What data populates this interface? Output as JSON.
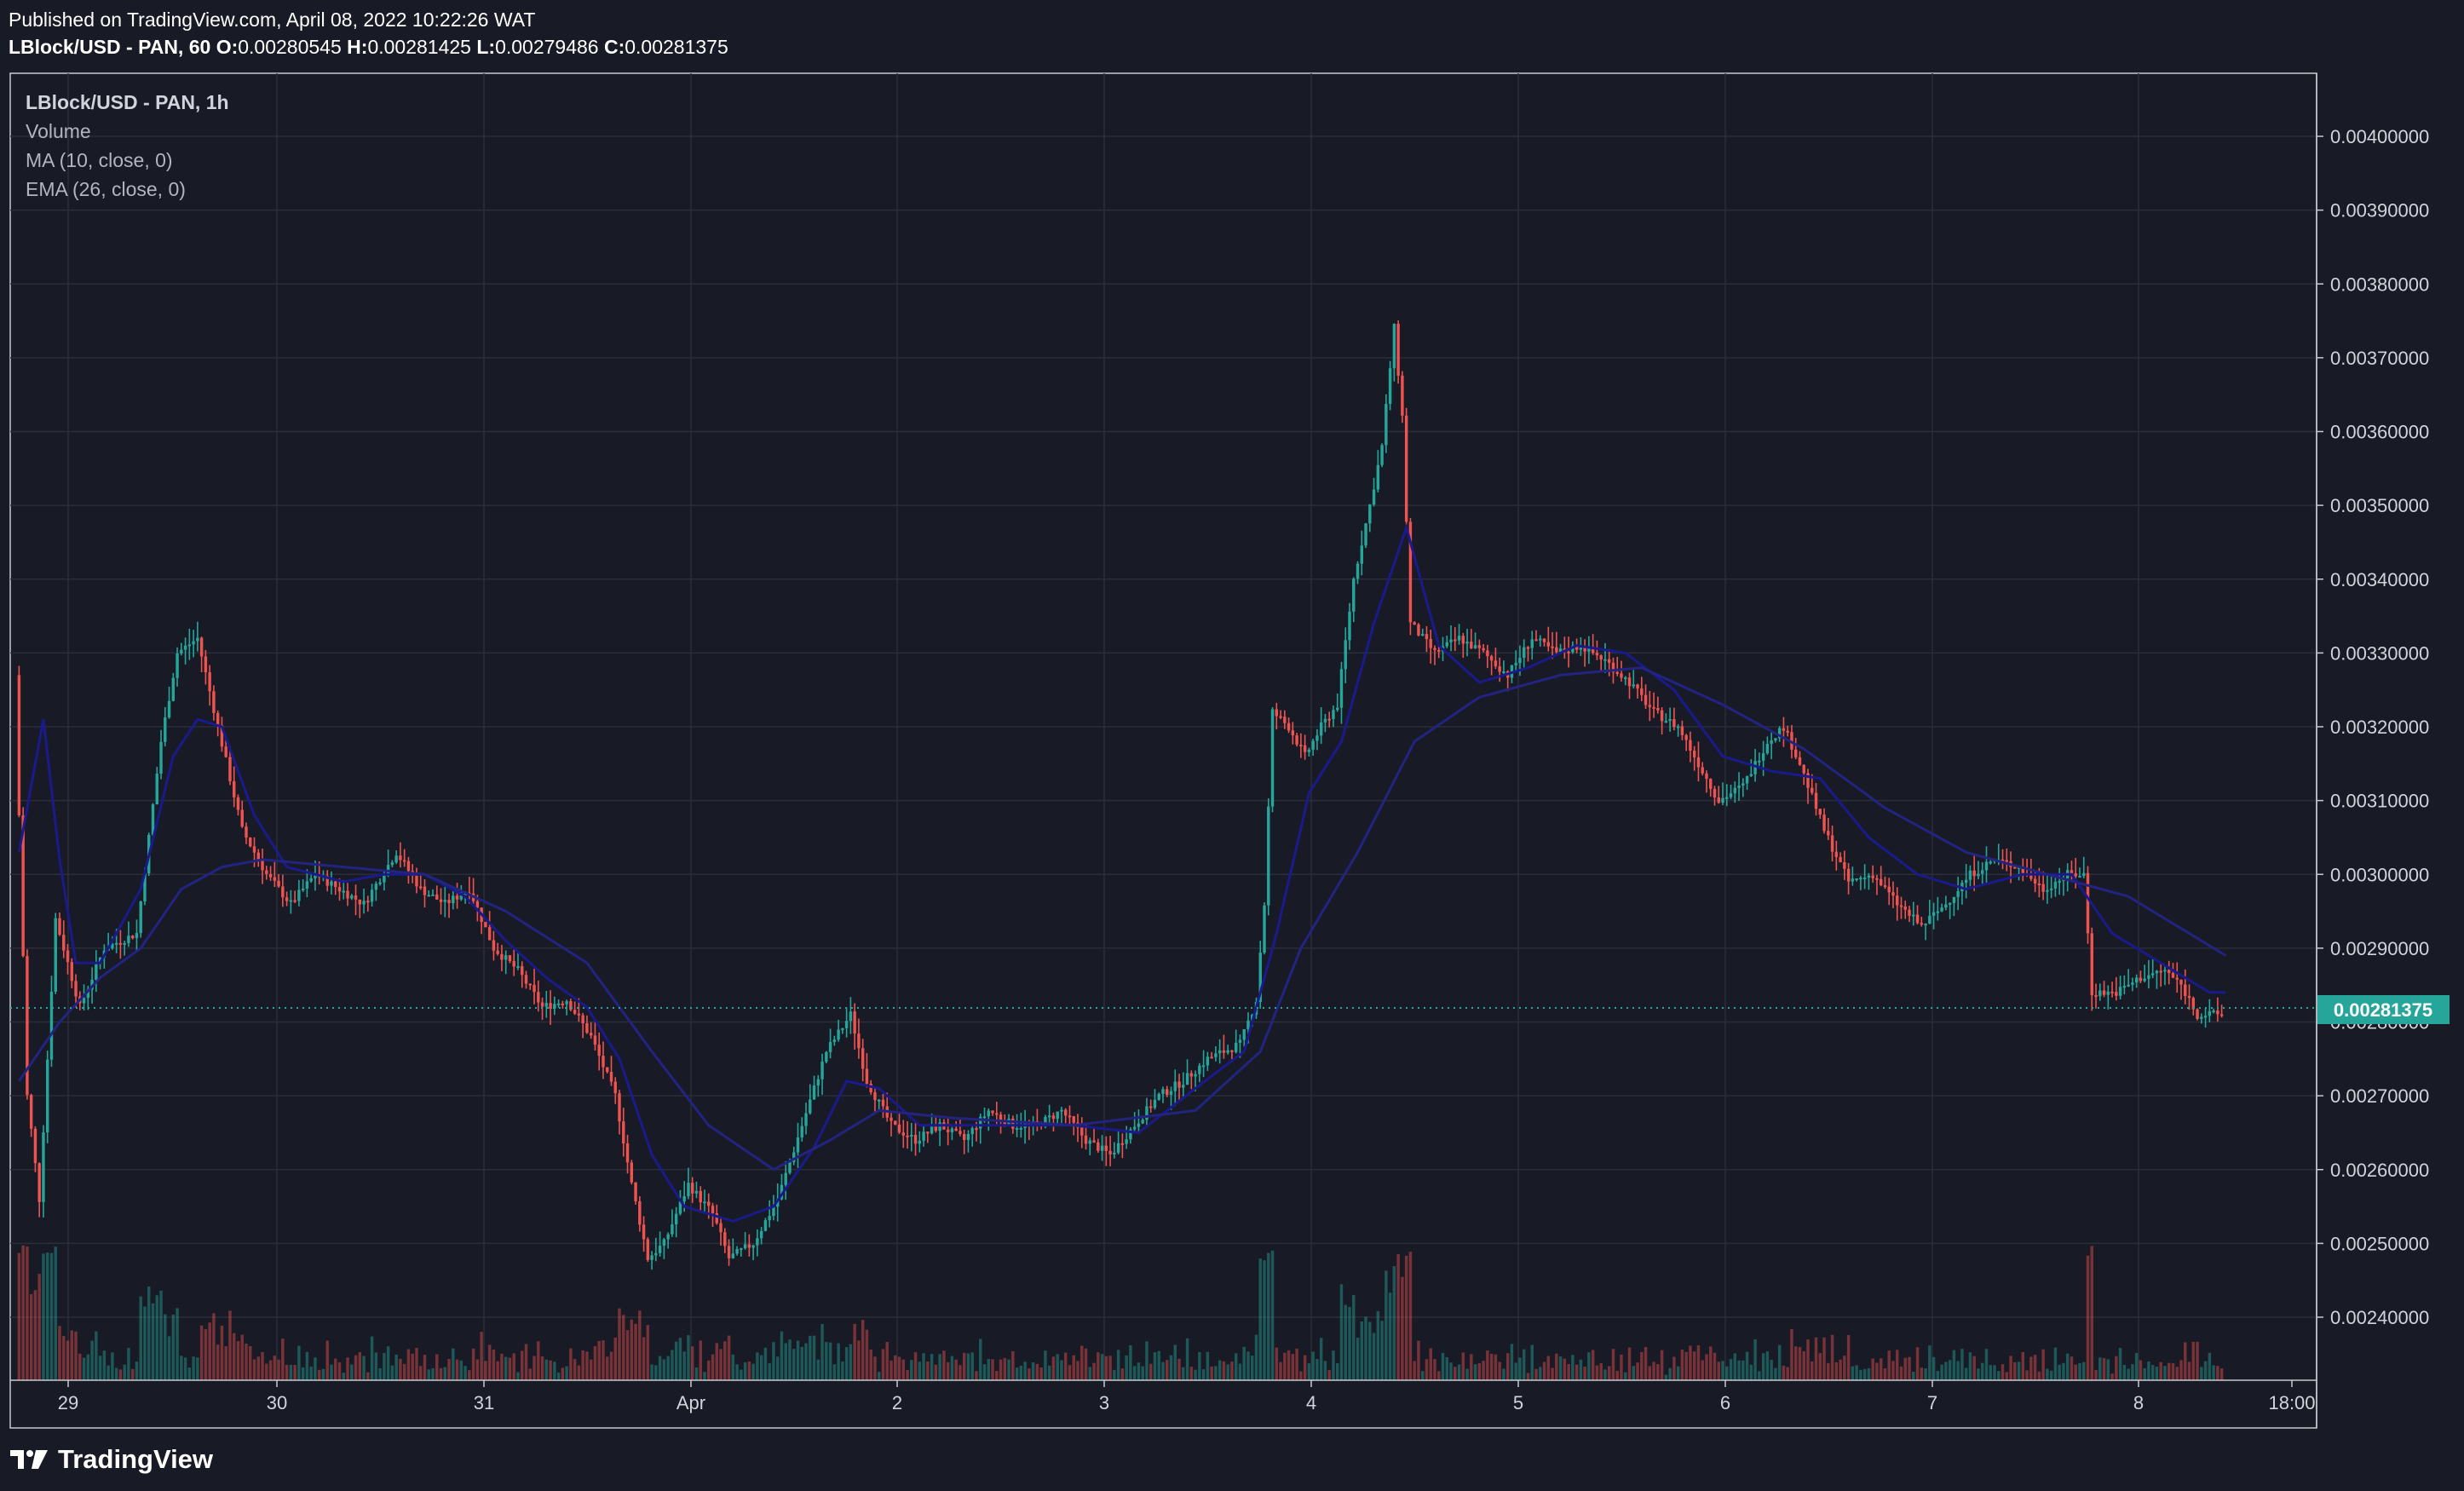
{
  "header": {
    "published": "Published on TradingView.com, April 08, 2022 10:22:26 WAT",
    "symbol_line": "LBlock/USD - PAN, 60",
    "open_label": "O:",
    "open": "0.00280545",
    "high_label": "H:",
    "high": "0.00281425",
    "low_label": "L:",
    "low": "0.00279486",
    "close_label": "C:",
    "close": "0.00281375"
  },
  "legend": {
    "symbol": "LBlock/USD - PAN, 1h",
    "volume": "Volume",
    "ma": "MA (10, close, 0)",
    "ema": "EMA (26, close, 0)"
  },
  "footer": {
    "brand": "TradingView"
  },
  "colors": {
    "up": "#26a69a",
    "down": "#ef5350",
    "ma": "#1a1a8c",
    "ema": "#1e1e7a",
    "last_price_bg": "#26a69a"
  },
  "chart_data": {
    "type": "candlestick",
    "y_axis_ticks": [
      "0.00400000",
      "0.00390000",
      "0.00380000",
      "0.00370000",
      "0.00360000",
      "0.00350000",
      "0.00340000",
      "0.00330000",
      "0.00320000",
      "0.00310000",
      "0.00300000",
      "0.00290000",
      "0.00280000",
      "0.00270000",
      "0.00260000",
      "0.00250000",
      "0.00240000"
    ],
    "x_axis_ticks": [
      "29",
      "30",
      "31",
      "Apr",
      "2",
      "3",
      "4",
      "5",
      "6",
      "7",
      "8",
      "18:00"
    ],
    "last_price": "0.00281375",
    "ylim": [
      0.00233,
      0.00408
    ],
    "series_path_prices": [
      [
        0,
        0.00327
      ],
      [
        3,
        0.0027
      ],
      [
        6,
        0.00256
      ],
      [
        10,
        0.00294
      ],
      [
        16,
        0.00282
      ],
      [
        22,
        0.0029
      ],
      [
        30,
        0.00292
      ],
      [
        36,
        0.00318
      ],
      [
        40,
        0.0033
      ],
      [
        45,
        0.00332
      ],
      [
        50,
        0.0032
      ],
      [
        56,
        0.00306
      ],
      [
        62,
        0.003
      ],
      [
        68,
        0.00296
      ],
      [
        74,
        0.003
      ],
      [
        80,
        0.00298
      ],
      [
        86,
        0.00296
      ],
      [
        94,
        0.00303
      ],
      [
        100,
        0.00298
      ],
      [
        106,
        0.00296
      ],
      [
        112,
        0.00298
      ],
      [
        118,
        0.0029
      ],
      [
        124,
        0.00287
      ],
      [
        130,
        0.00282
      ],
      [
        136,
        0.00283
      ],
      [
        142,
        0.00278
      ],
      [
        148,
        0.0027
      ],
      [
        152,
        0.00258
      ],
      [
        156,
        0.00248
      ],
      [
        160,
        0.0025
      ],
      [
        166,
        0.00258
      ],
      [
        172,
        0.00254
      ],
      [
        176,
        0.00248
      ],
      [
        182,
        0.0025
      ],
      [
        188,
        0.00256
      ],
      [
        194,
        0.00266
      ],
      [
        200,
        0.00276
      ],
      [
        206,
        0.00281
      ],
      [
        210,
        0.00272
      ],
      [
        216,
        0.00266
      ],
      [
        222,
        0.00264
      ],
      [
        228,
        0.00266
      ],
      [
        234,
        0.00264
      ],
      [
        240,
        0.00268
      ],
      [
        246,
        0.00266
      ],
      [
        252,
        0.00266
      ],
      [
        258,
        0.00268
      ],
      [
        264,
        0.00264
      ],
      [
        270,
        0.00262
      ],
      [
        276,
        0.00266
      ],
      [
        282,
        0.0027
      ],
      [
        288,
        0.00272
      ],
      [
        294,
        0.00275
      ],
      [
        298,
        0.00276
      ],
      [
        302,
        0.00277
      ],
      [
        306,
        0.00283
      ],
      [
        308,
        0.00296
      ],
      [
        310,
        0.00322
      ],
      [
        314,
        0.0032
      ],
      [
        318,
        0.00316
      ],
      [
        322,
        0.0032
      ],
      [
        326,
        0.00323
      ],
      [
        330,
        0.0034
      ],
      [
        334,
        0.0035
      ],
      [
        337,
        0.00358
      ],
      [
        340,
        0.00374
      ],
      [
        342,
        0.00362
      ],
      [
        344,
        0.00334
      ],
      [
        350,
        0.0033
      ],
      [
        356,
        0.00332
      ],
      [
        362,
        0.0033
      ],
      [
        368,
        0.00327
      ],
      [
        374,
        0.00332
      ],
      [
        380,
        0.0033
      ],
      [
        386,
        0.00331
      ],
      [
        392,
        0.00329
      ],
      [
        398,
        0.00326
      ],
      [
        404,
        0.00322
      ],
      [
        410,
        0.0032
      ],
      [
        416,
        0.00314
      ],
      [
        420,
        0.0031
      ],
      [
        426,
        0.00312
      ],
      [
        432,
        0.00318
      ],
      [
        436,
        0.0032
      ],
      [
        440,
        0.00315
      ],
      [
        446,
        0.00306
      ],
      [
        452,
        0.00299
      ],
      [
        458,
        0.003
      ],
      [
        464,
        0.00296
      ],
      [
        470,
        0.00293
      ],
      [
        476,
        0.00296
      ],
      [
        482,
        0.003
      ],
      [
        488,
        0.00302
      ],
      [
        494,
        0.00301
      ],
      [
        500,
        0.00298
      ],
      [
        506,
        0.003
      ],
      [
        510,
        0.003
      ],
      [
        512,
        0.00284
      ],
      [
        518,
        0.00284
      ],
      [
        524,
        0.00286
      ],
      [
        530,
        0.00287
      ],
      [
        534,
        0.00285
      ],
      [
        538,
        0.00281
      ],
      [
        544,
        0.00281
      ]
    ],
    "ma_path": [
      [
        0,
        0.00303
      ],
      [
        6,
        0.00321
      ],
      [
        10,
        0.00302
      ],
      [
        14,
        0.00288
      ],
      [
        20,
        0.00288
      ],
      [
        30,
        0.00298
      ],
      [
        38,
        0.00316
      ],
      [
        44,
        0.00321
      ],
      [
        50,
        0.0032
      ],
      [
        58,
        0.00308
      ],
      [
        66,
        0.00301
      ],
      [
        80,
        0.00299
      ],
      [
        90,
        0.003
      ],
      [
        100,
        0.003
      ],
      [
        110,
        0.00297
      ],
      [
        120,
        0.00291
      ],
      [
        130,
        0.00286
      ],
      [
        140,
        0.00282
      ],
      [
        148,
        0.00275
      ],
      [
        156,
        0.00262
      ],
      [
        164,
        0.00255
      ],
      [
        176,
        0.00253
      ],
      [
        186,
        0.00255
      ],
      [
        196,
        0.00263
      ],
      [
        204,
        0.00272
      ],
      [
        212,
        0.00271
      ],
      [
        222,
        0.00266
      ],
      [
        240,
        0.00266
      ],
      [
        260,
        0.00266
      ],
      [
        276,
        0.00265
      ],
      [
        290,
        0.00271
      ],
      [
        302,
        0.00276
      ],
      [
        310,
        0.00292
      ],
      [
        318,
        0.00311
      ],
      [
        326,
        0.00318
      ],
      [
        334,
        0.00334
      ],
      [
        342,
        0.00347
      ],
      [
        350,
        0.00331
      ],
      [
        360,
        0.00326
      ],
      [
        372,
        0.00328
      ],
      [
        384,
        0.00331
      ],
      [
        396,
        0.0033
      ],
      [
        408,
        0.00325
      ],
      [
        420,
        0.00316
      ],
      [
        432,
        0.00314
      ],
      [
        444,
        0.00313
      ],
      [
        456,
        0.00305
      ],
      [
        468,
        0.003
      ],
      [
        480,
        0.00298
      ],
      [
        494,
        0.003
      ],
      [
        506,
        0.003
      ],
      [
        516,
        0.00292
      ],
      [
        528,
        0.00288
      ],
      [
        540,
        0.00284
      ]
    ],
    "ema_path": [
      [
        0,
        0.00272
      ],
      [
        10,
        0.0028
      ],
      [
        20,
        0.00286
      ],
      [
        30,
        0.0029
      ],
      [
        40,
        0.00298
      ],
      [
        50,
        0.00301
      ],
      [
        60,
        0.00302
      ],
      [
        80,
        0.00301
      ],
      [
        100,
        0.003
      ],
      [
        120,
        0.00295
      ],
      [
        140,
        0.00288
      ],
      [
        156,
        0.00276
      ],
      [
        170,
        0.00266
      ],
      [
        186,
        0.0026
      ],
      [
        200,
        0.00264
      ],
      [
        212,
        0.00268
      ],
      [
        230,
        0.00267
      ],
      [
        260,
        0.00266
      ],
      [
        290,
        0.00268
      ],
      [
        306,
        0.00276
      ],
      [
        316,
        0.0029
      ],
      [
        330,
        0.00303
      ],
      [
        344,
        0.00318
      ],
      [
        360,
        0.00324
      ],
      [
        380,
        0.00327
      ],
      [
        400,
        0.00328
      ],
      [
        420,
        0.00323
      ],
      [
        440,
        0.00317
      ],
      [
        460,
        0.00309
      ],
      [
        480,
        0.00303
      ],
      [
        500,
        0.003
      ],
      [
        520,
        0.00297
      ],
      [
        544,
        0.00289
      ]
    ]
  }
}
